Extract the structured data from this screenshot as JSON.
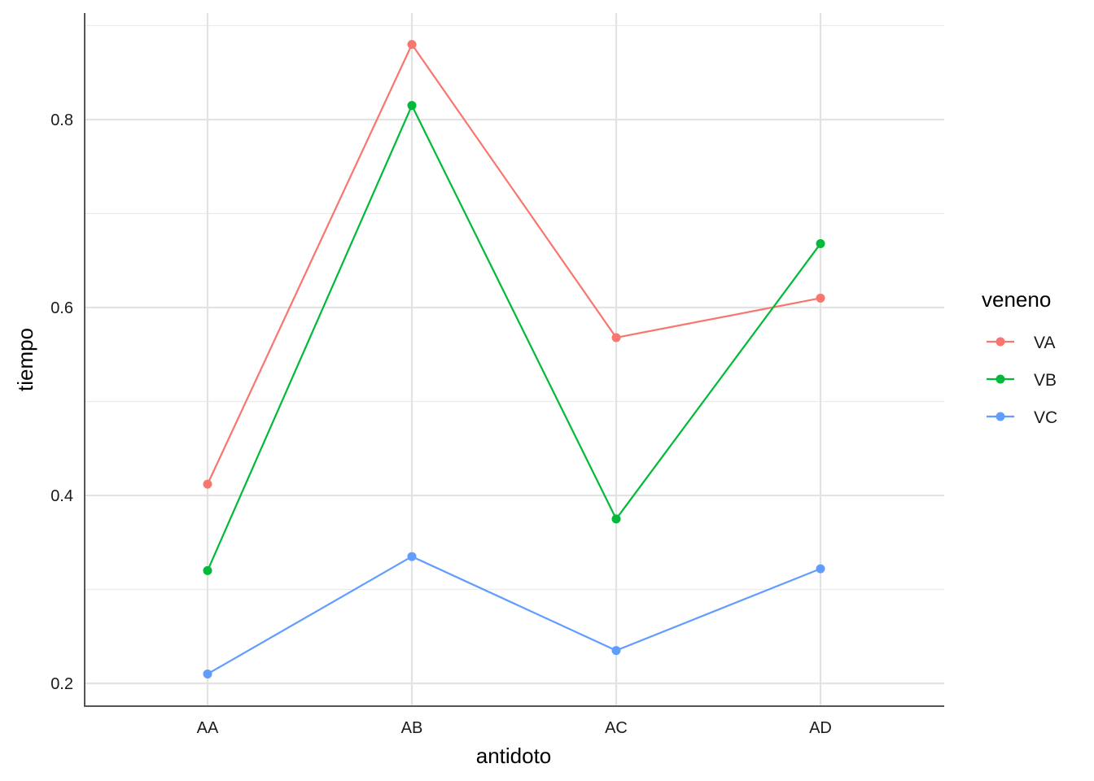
{
  "chart_data": {
    "type": "line",
    "categories": [
      "AA",
      "AB",
      "AC",
      "AD"
    ],
    "xlabel": "antidoto",
    "ylabel": "tiempo",
    "ylim": [
      0.177,
      0.9
    ],
    "yticks": [
      0.2,
      0.4,
      0.6,
      0.8
    ],
    "ytick_labels": [
      "0.2",
      "0.4",
      "0.6",
      "0.8"
    ],
    "grid": true,
    "legend": {
      "title": "veneno",
      "position": "right"
    },
    "series": [
      {
        "name": "VA",
        "color": "#F8766D",
        "values": [
          0.412,
          0.88,
          0.568,
          0.61
        ]
      },
      {
        "name": "VB",
        "color": "#00BA38",
        "values": [
          0.32,
          0.815,
          0.375,
          0.668
        ]
      },
      {
        "name": "VC",
        "color": "#619CFF",
        "values": [
          0.21,
          0.335,
          0.235,
          0.322
        ]
      }
    ]
  }
}
